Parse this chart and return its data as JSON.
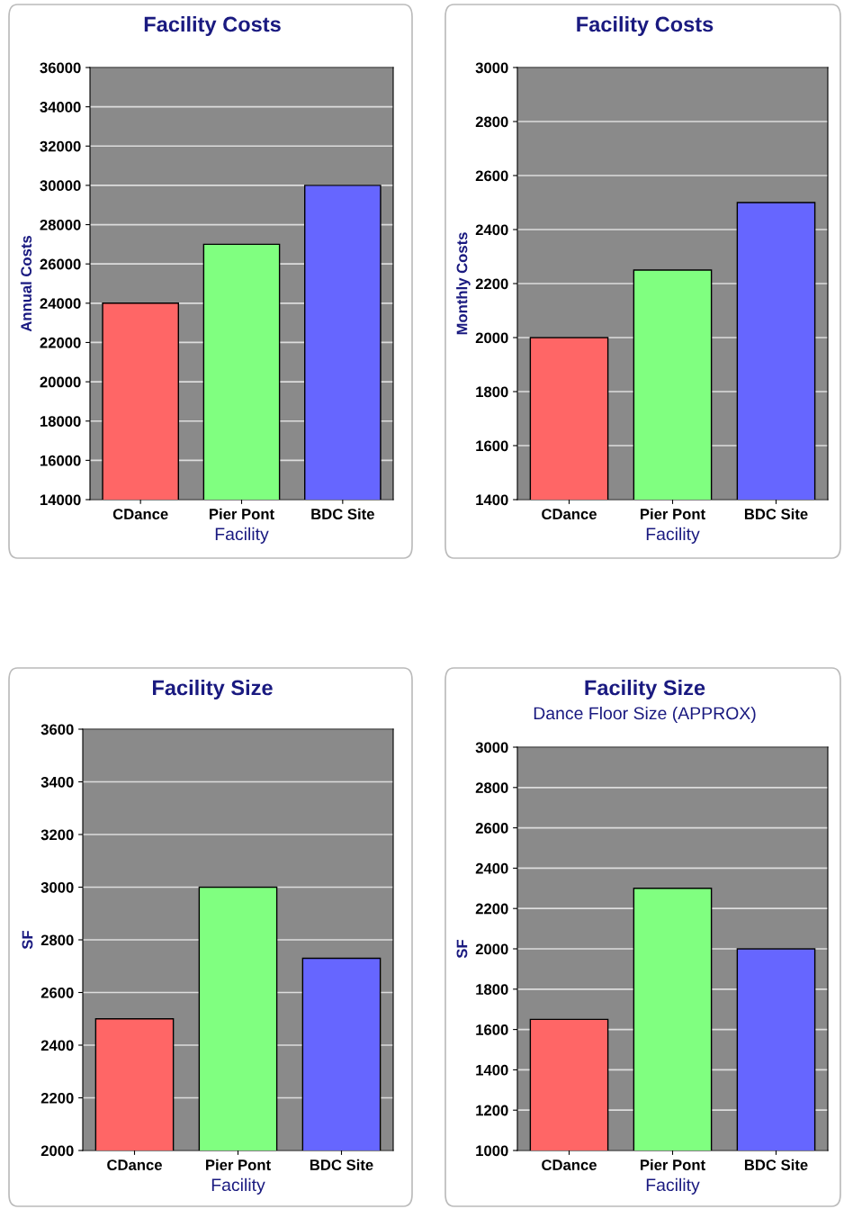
{
  "chart_data": [
    {
      "type": "bar",
      "title": "Facility Costs",
      "xlabel": "Facility",
      "ylabel": "Annual Costs",
      "categories": [
        "CDance",
        "Pier Pont",
        "BDC Site"
      ],
      "values": [
        24000,
        27000,
        30000
      ],
      "colors": [
        "#ff6666",
        "#80ff80",
        "#6666ff"
      ],
      "ylim": [
        14000,
        36000
      ],
      "yticks": [
        14000,
        16000,
        18000,
        20000,
        22000,
        24000,
        26000,
        28000,
        30000,
        32000,
        34000,
        36000
      ],
      "grid": "y"
    },
    {
      "type": "bar",
      "title": "Facility Costs",
      "xlabel": "Facility",
      "ylabel": "Monthly Costs",
      "categories": [
        "CDance",
        "Pier Pont",
        "BDC Site"
      ],
      "values": [
        2000,
        2250,
        2500
      ],
      "colors": [
        "#ff6666",
        "#80ff80",
        "#6666ff"
      ],
      "ylim": [
        1400,
        3000
      ],
      "yticks": [
        1400,
        1600,
        1800,
        2000,
        2200,
        2400,
        2600,
        2800,
        3000
      ],
      "grid": "y"
    },
    {
      "type": "bar",
      "title": "Facility Size",
      "xlabel": "Facility",
      "ylabel": "SF",
      "categories": [
        "CDance",
        "Pier Pont",
        "BDC Site"
      ],
      "values": [
        2500,
        3000,
        2730
      ],
      "colors": [
        "#ff6666",
        "#80ff80",
        "#6666ff"
      ],
      "ylim": [
        2000,
        3600
      ],
      "yticks": [
        2000,
        2200,
        2400,
        2600,
        2800,
        3000,
        3200,
        3400,
        3600
      ],
      "grid": "y"
    },
    {
      "type": "bar",
      "title": "Facility Size",
      "subtitle": "Dance Floor Size (APPROX)",
      "xlabel": "Facility",
      "ylabel": "SF",
      "categories": [
        "CDance",
        "Pier Pont",
        "BDC Site"
      ],
      "values": [
        1650,
        2300,
        2000
      ],
      "colors": [
        "#ff6666",
        "#80ff80",
        "#6666ff"
      ],
      "ylim": [
        1000,
        3000
      ],
      "yticks": [
        1000,
        1200,
        1400,
        1600,
        1800,
        2000,
        2200,
        2400,
        2600,
        2800,
        3000
      ],
      "grid": "y"
    }
  ]
}
